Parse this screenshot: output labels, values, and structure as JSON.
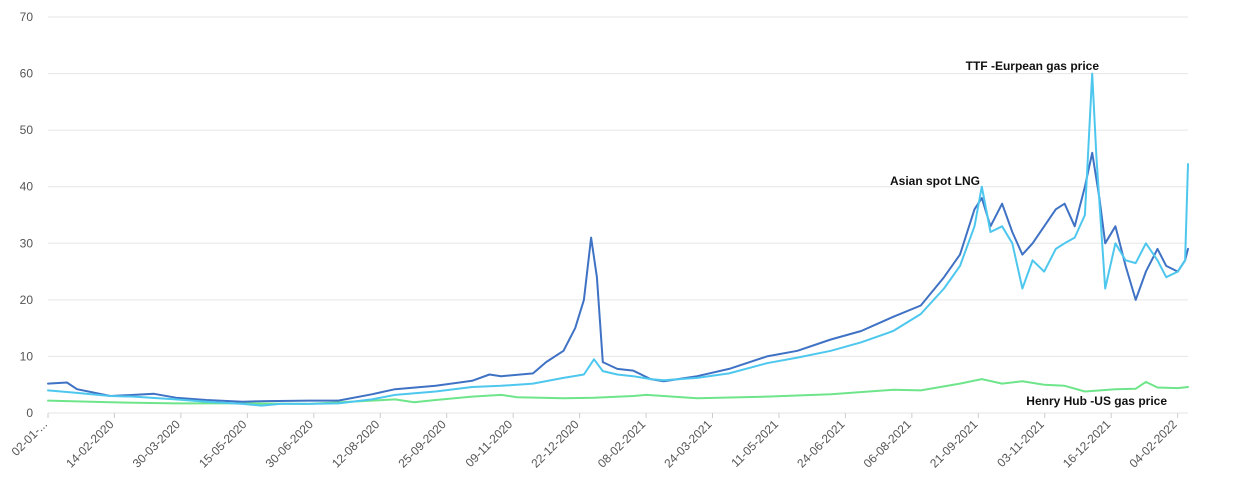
{
  "chart_data": {
    "type": "line",
    "title": "",
    "xlabel": "",
    "ylabel": "",
    "ylim": [
      0,
      70
    ],
    "y_ticks": [
      0,
      10,
      20,
      30,
      40,
      50,
      60,
      70
    ],
    "x_tick_labels": [
      "02-01-...",
      "14-02-2020",
      "30-03-2020",
      "15-05-2020",
      "30-06-2020",
      "12-08-2020",
      "25-09-2020",
      "09-11-2020",
      "22-12-2020",
      "08-02-2021",
      "24-03-2021",
      "11-05-2021",
      "24-06-2021",
      "06-08-2021",
      "21-09-2021",
      "03-11-2021",
      "16-12-2021",
      "04-02-2022"
    ],
    "x_range": [
      "2020-01-02",
      "2022-02-25"
    ],
    "grid": "horizontal",
    "series": [
      {
        "name": "TTF -Eurpean gas price",
        "color": "#4ec7ee",
        "points": [
          [
            "2020-01-02",
            4.0
          ],
          [
            "2020-01-20",
            3.6
          ],
          [
            "2020-02-14",
            3.0
          ],
          [
            "2020-03-01",
            2.9
          ],
          [
            "2020-03-30",
            2.4
          ],
          [
            "2020-04-20",
            2.0
          ],
          [
            "2020-05-15",
            1.6
          ],
          [
            "2020-05-28",
            1.3
          ],
          [
            "2020-06-10",
            1.6
          ],
          [
            "2020-06-30",
            1.6
          ],
          [
            "2020-07-20",
            1.7
          ],
          [
            "2020-08-12",
            2.4
          ],
          [
            "2020-08-28",
            3.2
          ],
          [
            "2020-09-25",
            3.8
          ],
          [
            "2020-10-20",
            4.6
          ],
          [
            "2020-11-09",
            4.8
          ],
          [
            "2020-12-01",
            5.2
          ],
          [
            "2020-12-22",
            6.2
          ],
          [
            "2021-01-05",
            6.8
          ],
          [
            "2021-01-12",
            9.5
          ],
          [
            "2021-01-18",
            7.4
          ],
          [
            "2021-01-28",
            6.8
          ],
          [
            "2021-02-08",
            6.5
          ],
          [
            "2021-02-20",
            6.0
          ],
          [
            "2021-03-01",
            5.8
          ],
          [
            "2021-03-24",
            6.2
          ],
          [
            "2021-04-15",
            7.0
          ],
          [
            "2021-05-11",
            8.8
          ],
          [
            "2021-06-01",
            9.8
          ],
          [
            "2021-06-24",
            11.0
          ],
          [
            "2021-07-15",
            12.5
          ],
          [
            "2021-08-06",
            14.5
          ],
          [
            "2021-08-25",
            17.5
          ],
          [
            "2021-09-10",
            22.0
          ],
          [
            "2021-09-21",
            26.0
          ],
          [
            "2021-10-01",
            33.0
          ],
          [
            "2021-10-06",
            40.0
          ],
          [
            "2021-10-12",
            32.0
          ],
          [
            "2021-10-20",
            33.0
          ],
          [
            "2021-10-27",
            30.0
          ],
          [
            "2021-11-03",
            22.0
          ],
          [
            "2021-11-10",
            27.0
          ],
          [
            "2021-11-18",
            25.0
          ],
          [
            "2021-11-26",
            29.0
          ],
          [
            "2021-12-02",
            30.0
          ],
          [
            "2021-12-09",
            31.0
          ],
          [
            "2021-12-16",
            35.0
          ],
          [
            "2021-12-21",
            60.0
          ],
          [
            "2021-12-24",
            45.0
          ],
          [
            "2021-12-30",
            22.0
          ],
          [
            "2022-01-06",
            30.0
          ],
          [
            "2022-01-13",
            27.0
          ],
          [
            "2022-01-20",
            26.5
          ],
          [
            "2022-01-27",
            30.0
          ],
          [
            "2022-02-04",
            27.0
          ],
          [
            "2022-02-10",
            24.0
          ],
          [
            "2022-02-18",
            25.0
          ],
          [
            "2022-02-23",
            27.0
          ],
          [
            "2022-02-25",
            44.0
          ]
        ]
      },
      {
        "name": "Asian spot LNG",
        "color": "#3f72c4",
        "points": [
          [
            "2020-01-02",
            5.2
          ],
          [
            "2020-01-15",
            5.4
          ],
          [
            "2020-01-22",
            4.2
          ],
          [
            "2020-02-14",
            3.0
          ],
          [
            "2020-03-01",
            3.2
          ],
          [
            "2020-03-15",
            3.4
          ],
          [
            "2020-03-30",
            2.7
          ],
          [
            "2020-04-20",
            2.3
          ],
          [
            "2020-05-15",
            2.0
          ],
          [
            "2020-06-01",
            2.1
          ],
          [
            "2020-06-30",
            2.2
          ],
          [
            "2020-07-20",
            2.2
          ],
          [
            "2020-08-12",
            3.3
          ],
          [
            "2020-08-28",
            4.2
          ],
          [
            "2020-09-25",
            4.8
          ],
          [
            "2020-10-20",
            5.7
          ],
          [
            "2020-11-01",
            6.8
          ],
          [
            "2020-11-09",
            6.5
          ],
          [
            "2020-12-01",
            7.0
          ],
          [
            "2020-12-10",
            9.0
          ],
          [
            "2020-12-22",
            11.0
          ],
          [
            "2020-12-30",
            15.0
          ],
          [
            "2021-01-05",
            20.0
          ],
          [
            "2021-01-10",
            31.0
          ],
          [
            "2021-01-14",
            24.0
          ],
          [
            "2021-01-18",
            9.0
          ],
          [
            "2021-01-28",
            7.8
          ],
          [
            "2021-02-08",
            7.5
          ],
          [
            "2021-02-20",
            6.0
          ],
          [
            "2021-03-01",
            5.6
          ],
          [
            "2021-03-24",
            6.5
          ],
          [
            "2021-04-15",
            7.8
          ],
          [
            "2021-05-11",
            10.0
          ],
          [
            "2021-06-01",
            11.0
          ],
          [
            "2021-06-24",
            13.0
          ],
          [
            "2021-07-15",
            14.5
          ],
          [
            "2021-08-06",
            17.0
          ],
          [
            "2021-08-25",
            19.0
          ],
          [
            "2021-09-10",
            24.0
          ],
          [
            "2021-09-21",
            28.0
          ],
          [
            "2021-10-01",
            36.0
          ],
          [
            "2021-10-06",
            38.0
          ],
          [
            "2021-10-12",
            33.0
          ],
          [
            "2021-10-20",
            37.0
          ],
          [
            "2021-10-27",
            32.0
          ],
          [
            "2021-11-03",
            28.0
          ],
          [
            "2021-11-10",
            30.0
          ],
          [
            "2021-11-18",
            33.0
          ],
          [
            "2021-11-26",
            36.0
          ],
          [
            "2021-12-02",
            37.0
          ],
          [
            "2021-12-09",
            33.0
          ],
          [
            "2021-12-16",
            40.0
          ],
          [
            "2021-12-21",
            46.0
          ],
          [
            "2021-12-26",
            38.0
          ],
          [
            "2021-12-30",
            30.0
          ],
          [
            "2022-01-06",
            33.0
          ],
          [
            "2022-01-13",
            26.0
          ],
          [
            "2022-01-20",
            20.0
          ],
          [
            "2022-01-27",
            25.0
          ],
          [
            "2022-02-04",
            29.0
          ],
          [
            "2022-02-10",
            26.0
          ],
          [
            "2022-02-18",
            25.0
          ],
          [
            "2022-02-23",
            27.0
          ],
          [
            "2022-02-25",
            29.0
          ]
        ]
      },
      {
        "name": "Henry Hub -US gas price",
        "color": "#6ee58a",
        "points": [
          [
            "2020-01-02",
            2.2
          ],
          [
            "2020-02-14",
            1.9
          ],
          [
            "2020-03-30",
            1.7
          ],
          [
            "2020-05-15",
            1.7
          ],
          [
            "2020-06-30",
            1.6
          ],
          [
            "2020-08-12",
            2.2
          ],
          [
            "2020-08-28",
            2.4
          ],
          [
            "2020-09-10",
            1.9
          ],
          [
            "2020-09-25",
            2.3
          ],
          [
            "2020-10-20",
            2.9
          ],
          [
            "2020-11-09",
            3.2
          ],
          [
            "2020-11-20",
            2.8
          ],
          [
            "2020-12-22",
            2.6
          ],
          [
            "2021-01-12",
            2.7
          ],
          [
            "2021-02-08",
            3.0
          ],
          [
            "2021-02-17",
            3.2
          ],
          [
            "2021-03-24",
            2.6
          ],
          [
            "2021-05-11",
            2.9
          ],
          [
            "2021-06-24",
            3.3
          ],
          [
            "2021-08-06",
            4.1
          ],
          [
            "2021-08-25",
            4.0
          ],
          [
            "2021-09-21",
            5.2
          ],
          [
            "2021-10-06",
            6.0
          ],
          [
            "2021-10-20",
            5.2
          ],
          [
            "2021-11-03",
            5.6
          ],
          [
            "2021-11-18",
            5.0
          ],
          [
            "2021-12-02",
            4.8
          ],
          [
            "2021-12-16",
            3.8
          ],
          [
            "2022-01-06",
            4.2
          ],
          [
            "2022-01-20",
            4.3
          ],
          [
            "2022-01-27",
            5.5
          ],
          [
            "2022-02-04",
            4.5
          ],
          [
            "2022-02-18",
            4.4
          ],
          [
            "2022-02-25",
            4.6
          ]
        ]
      }
    ]
  }
}
